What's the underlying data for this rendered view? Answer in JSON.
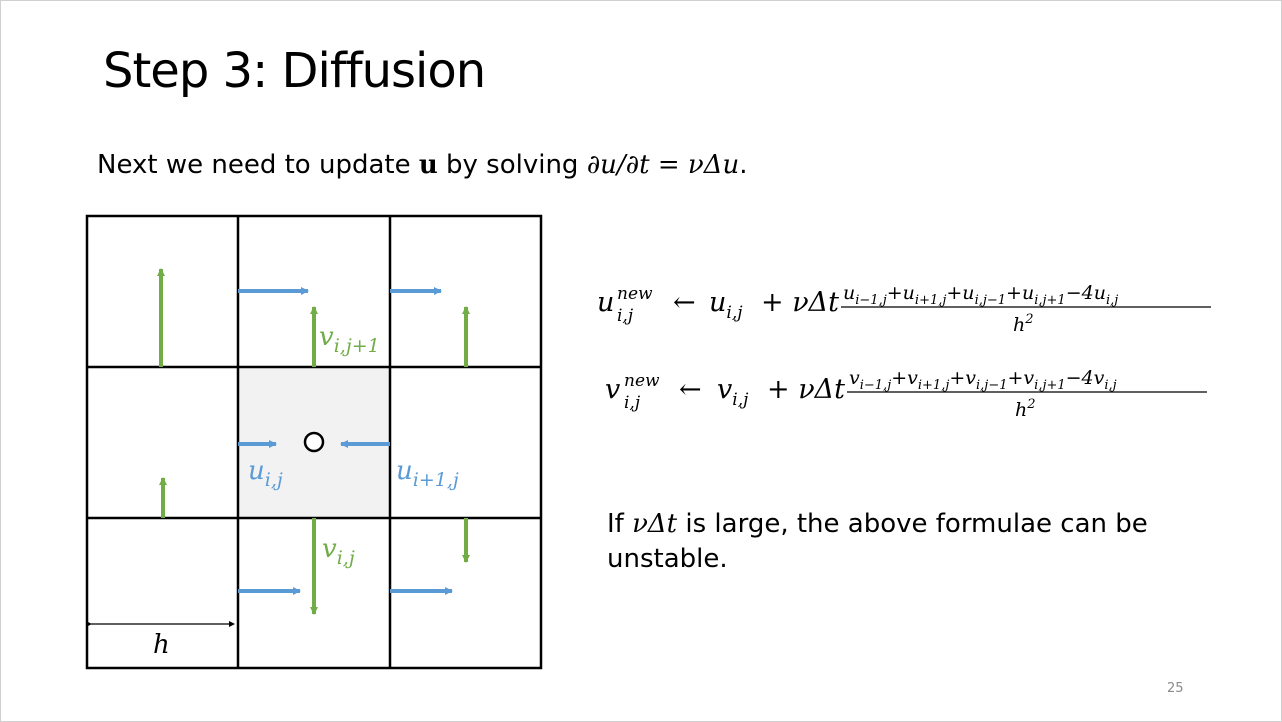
{
  "title": "Step 3: Diffusion",
  "intro": {
    "before": "Next we need to update ",
    "vec_u": "u",
    "middle": " by solving ",
    "equation_lhs": "∂u/∂t",
    "equals": " = ",
    "equation_rhs": "νΔu",
    "end": "."
  },
  "grid": {
    "labels": {
      "v_top": "v",
      "v_top_sub": "i,j+1",
      "u_left": "u",
      "u_left_sub": "i,j",
      "u_right": "u",
      "u_right_sub": "i+1,j",
      "v_bottom": "v",
      "v_bottom_sub": "i,j",
      "h": "h"
    },
    "colors": {
      "u_arrow": "#5b9bd5",
      "v_arrow": "#70ad47",
      "center_cell": "#f2f2f2",
      "grid_line": "#000000"
    }
  },
  "formulas": {
    "u_update": {
      "lhs": "u",
      "lhs_sup": "new",
      "lhs_sub": "i,j",
      "arrow": "←",
      "first": "u",
      "first_sub": "i,j",
      "plus_coef": "+ νΔt",
      "numerator": [
        "u",
        "i−1,j",
        "+u",
        "i+1,j",
        "+u",
        "i,j−1",
        "+u",
        "i,j+1",
        "−4u",
        "i,j"
      ],
      "denominator": "h",
      "denominator_sup": "2"
    },
    "v_update": {
      "lhs": "v",
      "lhs_sup": "new",
      "lhs_sub": "i,j",
      "arrow": "←",
      "first": "v",
      "first_sub": "i,j",
      "plus_coef": "+ νΔt",
      "numerator": [
        "v",
        "i−1,j",
        "+v",
        "i+1,j",
        "+v",
        "i,j−1",
        "+v",
        "i,j+1",
        "−4v",
        "i,j"
      ],
      "denominator": "h",
      "denominator_sup": "2"
    }
  },
  "note": {
    "before": "If ",
    "math": "νΔt",
    "after": " is large, the above formulae can be unstable."
  },
  "page_number": "25"
}
